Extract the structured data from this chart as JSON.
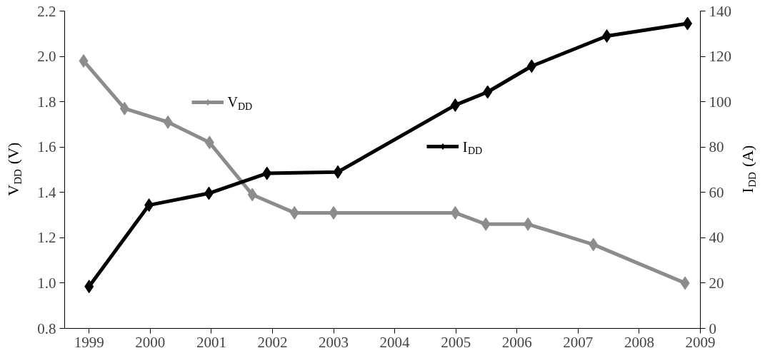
{
  "chart_data": {
    "type": "line",
    "ylabel": "V$_{DD}$ (V)",
    "y2label": "I$_{DD}$ (A)",
    "xlim": [
      1998.6,
      2009
    ],
    "xticks": [
      1999,
      2000,
      2001,
      2002,
      2003,
      2004,
      2005,
      2006,
      2007,
      2008,
      2009
    ],
    "ylim": [
      0.8,
      2.2
    ],
    "yticks": [
      0.8,
      {
        "value": 1,
        "label": "1.0"
      },
      1.2,
      1.4,
      1.6,
      1.8,
      {
        "value": 2,
        "label": "2.0"
      },
      2.2
    ],
    "y2lim": [
      0,
      140
    ],
    "y2ticks": [
      0,
      20,
      40,
      60,
      80,
      100,
      120,
      140
    ],
    "marker": "diamond",
    "grid": false,
    "legend": "center",
    "line_style": "solid",
    "series": [
      {
        "name": "V$_{DD}$",
        "color": "#8c8c8c",
        "x": [
          1998.91,
          1999.58,
          2000.29,
          2000.97,
          2001.67,
          2002.36,
          2003.0,
          2004.99,
          2005.49,
          2006.18,
          2007.25,
          2008.75
        ],
        "values": [
          1.98,
          1.77,
          1.71,
          1.62,
          1.39,
          1.31,
          1.31,
          1.31,
          1.26,
          1.26,
          1.17,
          1.0
        ]
      },
      {
        "name": "I$_{DD}$",
        "color": "#000000",
        "axis": "y2",
        "x": [
          1999.0,
          1999.98,
          2000.96,
          2001.91,
          2003.07,
          2004.99,
          2005.52,
          2006.24,
          2007.47,
          2008.79
        ],
        "values": [
          18.5,
          54.4,
          59.6,
          68.4,
          69,
          98.5,
          104.3,
          115.7,
          129,
          134.5
        ]
      }
    ]
  }
}
